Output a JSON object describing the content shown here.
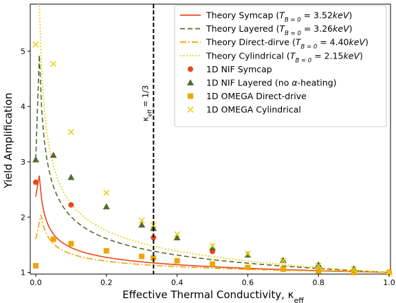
{
  "chart_data": {
    "type": "line",
    "xlabel": "Effective Thermal Conductivity, κ",
    "xlabel_sub": "eff",
    "ylabel": "Yield Amplification",
    "xlim": [
      0,
      1.0
    ],
    "ylim": [
      0.97,
      5.85
    ],
    "xticks": [
      0.0,
      0.2,
      0.4,
      0.6,
      0.8,
      1.0
    ],
    "xtick_labels": [
      "0.0",
      "0.2",
      "0.4",
      "0.6",
      "0.8",
      "1.0"
    ],
    "yticks": [
      1,
      2,
      3,
      4,
      5
    ],
    "ytick_labels": [
      "1",
      "2",
      "3",
      "4",
      "5"
    ],
    "grid": false,
    "legend_position": "top-right",
    "annotation": {
      "text": "κ",
      "sub": "eff",
      "suffix": " = 1/3",
      "x": 0.3333
    },
    "theory_series": [
      {
        "name_prefix": "Theory Symcap (",
        "name_T": "T",
        "name_sub": "B = 0",
        "name_eq": " = 3.52",
        "name_unit": "keV",
        "name_suffix": ")",
        "color": "#e8471c",
        "dash": "solid",
        "peak": [
          0.01,
          2.75
        ],
        "start": [
          0.0,
          2.37
        ],
        "A": 1.75
      },
      {
        "name_prefix": "Theory Layered (",
        "name_T": "T",
        "name_sub": "B = 0",
        "name_eq": " = 3.26",
        "name_unit": "keV",
        "name_suffix": ")",
        "color": "#556b2f",
        "dash": "dashed",
        "peak": [
          0.01,
          4.93
        ],
        "start": [
          0.0,
          3.05
        ],
        "A": 3.93
      },
      {
        "name_prefix": "Theory Direct-dirve (",
        "name_T": "T",
        "name_sub": "B = 0",
        "name_eq": " = 4.40",
        "name_unit": "keV",
        "name_suffix": ")",
        "color": "#f0a500",
        "dash": "dashdot",
        "peak": [
          0.015,
          2.04
        ],
        "start": [
          0.0,
          1.6
        ],
        "A": 1.04
      },
      {
        "name_prefix": "Theory Cylindrical (",
        "name_T": "T",
        "name_sub": "B = 0",
        "name_eq": " = 2.15",
        "name_unit": "keV",
        "name_suffix": ")",
        "color": "#e8d21c",
        "dash": "dotted",
        "peak": [
          0.01,
          5.85
        ],
        "start": [
          0.005,
          5.85
        ],
        "A": 4.95
      }
    ],
    "data_series": [
      {
        "name": "1D NIF Symcap",
        "marker": "circle",
        "color": "#e8471c",
        "x": [
          0.0,
          0.1,
          0.333,
          0.5
        ],
        "y": [
          2.63,
          2.22,
          1.63,
          1.38
        ]
      },
      {
        "name_prefix": "1D NIF Layered (no ",
        "name_alpha": "α",
        "name_suffix": "-heating)",
        "marker": "triangle",
        "color": "#556b2f",
        "x": [
          0.0,
          0.05,
          0.1,
          0.2,
          0.3,
          0.333,
          0.4,
          0.5,
          0.6,
          0.7,
          0.8,
          0.9,
          1.0
        ],
        "y": [
          3.04,
          3.12,
          2.72,
          2.19,
          1.86,
          1.8,
          1.63,
          1.45,
          1.32,
          1.22,
          1.14,
          1.07,
          1.0
        ]
      },
      {
        "name": "1D OMEGA Direct-drive",
        "marker": "square",
        "color": "#f0a500",
        "x": [
          0.0,
          0.05,
          0.1,
          0.2,
          0.3,
          0.333,
          0.4,
          0.5,
          0.6,
          0.7,
          0.8,
          0.9,
          1.0
        ],
        "y": [
          1.12,
          1.6,
          1.52,
          1.39,
          1.29,
          1.26,
          1.21,
          1.15,
          1.09,
          1.06,
          1.03,
          1.0,
          1.0
        ]
      },
      {
        "name": "1D OMEGA Cylindrical",
        "marker": "x",
        "color": "#e8d21c",
        "x": [
          0.0,
          0.05,
          0.1,
          0.2,
          0.3,
          0.333,
          0.4,
          0.5,
          0.6,
          0.7,
          0.8,
          0.9,
          1.0
        ],
        "y": [
          5.12,
          4.77,
          3.54,
          2.44,
          1.94,
          1.86,
          1.69,
          1.48,
          1.34,
          1.21,
          1.12,
          1.06,
          1.0
        ]
      }
    ]
  }
}
